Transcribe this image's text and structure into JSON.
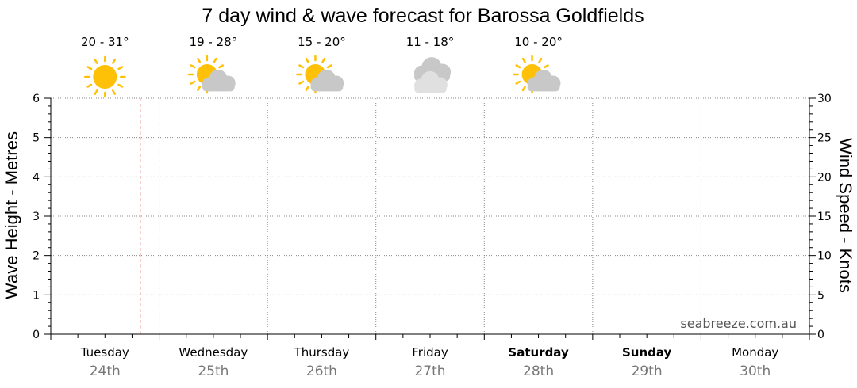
{
  "chart_data": {
    "type": "line",
    "title": "7 day wind & wave forecast for Barossa Goldfields",
    "ylabel_left": "Wave Height - Metres",
    "ylabel_right": "Wind Speed - Knots",
    "ylim_left": [
      0,
      6
    ],
    "ylim_right": [
      0,
      30
    ],
    "yticks_left": [
      "0",
      "1",
      "2",
      "3",
      "4",
      "5",
      "6"
    ],
    "yticks_right": [
      "0",
      "5",
      "10",
      "15",
      "20",
      "25",
      "30"
    ],
    "grid": true,
    "days": [
      {
        "name": "Tuesday",
        "date": "24th",
        "bold": false,
        "temp": "20 - 31°",
        "weather_icon": "sunny-icon"
      },
      {
        "name": "Wednesday",
        "date": "25th",
        "bold": false,
        "temp": "19 - 28°",
        "weather_icon": "partly-cloudy-icon"
      },
      {
        "name": "Thursday",
        "date": "26th",
        "bold": false,
        "temp": "15 - 20°",
        "weather_icon": "partly-cloudy-icon"
      },
      {
        "name": "Friday",
        "date": "27th",
        "bold": false,
        "temp": "11 - 18°",
        "weather_icon": "cloudy-icon"
      },
      {
        "name": "Saturday",
        "date": "28th",
        "bold": true,
        "temp": "10 - 20°",
        "weather_icon": "partly-cloudy-icon"
      },
      {
        "name": "Sunday",
        "date": "29th",
        "bold": true,
        "temp": "",
        "weather_icon": ""
      },
      {
        "name": "Monday",
        "date": "30th",
        "bold": false,
        "temp": "",
        "weather_icon": ""
      }
    ],
    "now_marker_color": "#e8a0a0",
    "series": []
  },
  "watermark": "seabreeze.com.au",
  "colors": {
    "sun": "#FFC107",
    "cloud": "#c8c8c8",
    "cloud_light": "#e0e0e0",
    "grid": "#888888"
  }
}
